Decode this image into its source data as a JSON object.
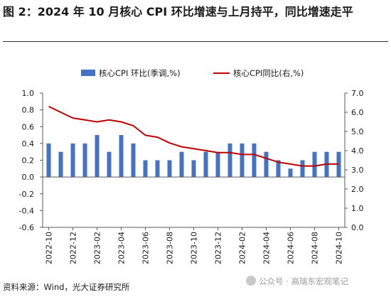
{
  "figure": {
    "title": "图 2：2024 年 10 月核心 CPI 环比增速与上月持平，同比增速走平",
    "source": "资料来源：Wind，光大证券研究所",
    "watermark": "公众号 · 高瑞东宏观笔记"
  },
  "colors": {
    "bar": "#4472c4",
    "line": "#c00000",
    "axis": "#595959",
    "text": "#1a1a1a"
  },
  "chart_data": {
    "type": "bar",
    "title": "",
    "categories": [
      "2022-10",
      "2022-11",
      "2022-12",
      "2023-01",
      "2023-02",
      "2023-03",
      "2023-04",
      "2023-05",
      "2023-06",
      "2023-07",
      "2023-08",
      "2023-09",
      "2023-10",
      "2023-11",
      "2023-12",
      "2024-01",
      "2024-02",
      "2024-03",
      "2024-04",
      "2024-05",
      "2024-06",
      "2024-07",
      "2024-08",
      "2024-09",
      "2024-10"
    ],
    "x_tick_labels": [
      "2022-10",
      "2022-12",
      "2023-02",
      "2023-04",
      "2023-06",
      "2023-08",
      "2023-10",
      "2023-12",
      "2024-02",
      "2024-04",
      "2024-06",
      "2024-08",
      "2024-10"
    ],
    "series": [
      {
        "name": "核心CPI 环比(季调,%)",
        "type": "bar",
        "axis": "left",
        "values": [
          0.4,
          0.3,
          0.4,
          0.4,
          0.5,
          0.3,
          0.5,
          0.4,
          0.2,
          0.2,
          0.2,
          0.3,
          0.2,
          0.3,
          0.3,
          0.4,
          0.4,
          0.4,
          0.3,
          0.2,
          0.1,
          0.2,
          0.3,
          0.3,
          0.3
        ]
      },
      {
        "name": "核心CPI同比(右,%)",
        "type": "line",
        "axis": "right",
        "values": [
          6.3,
          6.0,
          5.7,
          5.6,
          5.5,
          5.6,
          5.5,
          5.3,
          4.8,
          4.7,
          4.4,
          4.2,
          4.1,
          4.0,
          3.9,
          3.9,
          3.8,
          3.8,
          3.6,
          3.4,
          3.3,
          3.2,
          3.2,
          3.3,
          3.3
        ]
      }
    ],
    "y_left": {
      "lim": [
        -0.6,
        1.0
      ],
      "ticks": [
        "-0.6",
        "-0.4",
        "-0.2",
        "0.0",
        "0.2",
        "0.4",
        "0.6",
        "0.8",
        "1.0"
      ]
    },
    "y_right": {
      "lim": [
        0.0,
        7.0
      ],
      "ticks": [
        "0.0",
        "1.0",
        "2.0",
        "3.0",
        "4.0",
        "5.0",
        "6.0",
        "7.0"
      ]
    },
    "legend_placement": "top",
    "grid": false
  }
}
